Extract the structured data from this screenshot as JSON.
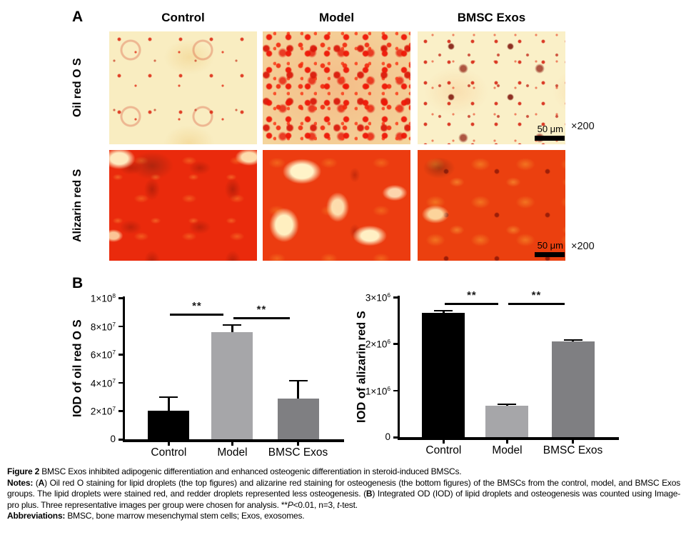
{
  "panel_a": {
    "label": "A",
    "column_headers": [
      "Control",
      "Model",
      "BMSC Exos"
    ],
    "row_labels": [
      "Oil red O S",
      "Alizarin red S"
    ],
    "scale_bar_text": "50 μm",
    "magnification": "×200"
  },
  "panel_b": {
    "label": "B"
  },
  "chart_data": [
    {
      "type": "bar",
      "title": "",
      "ylabel": "IOD of oil red O S",
      "xlabel": "",
      "categories": [
        "Control",
        "Model",
        "BMSC Exos"
      ],
      "values": [
        20000000,
        76000000,
        29000000
      ],
      "errors": [
        10500000,
        5500000,
        13000000
      ],
      "bar_colors": [
        "#000000",
        "#a6a6a9",
        "#7f7f82"
      ],
      "ylim": [
        0,
        100000000
      ],
      "grid": false,
      "legend": "none",
      "yticks": [
        {
          "value": 0,
          "label": "0"
        },
        {
          "value": 20000000,
          "label": "2×10^7"
        },
        {
          "value": 40000000,
          "label": "4×10^7"
        },
        {
          "value": 60000000,
          "label": "6×10^7"
        },
        {
          "value": 80000000,
          "label": "8×10^7"
        },
        {
          "value": 100000000,
          "label": "1×10^8"
        }
      ],
      "significance": [
        {
          "from": 0,
          "to": 1,
          "label": "**",
          "value": 89000000
        },
        {
          "from": 1,
          "to": 2,
          "label": "**",
          "value": 86500000
        }
      ]
    },
    {
      "type": "bar",
      "title": "",
      "ylabel": "IOD of alizarin red S",
      "xlabel": "",
      "categories": [
        "Control",
        "Model",
        "BMSC Exos"
      ],
      "values": [
        2670000,
        680000,
        2050000
      ],
      "errors": [
        60000,
        40000,
        50000
      ],
      "bar_colors": [
        "#000000",
        "#a6a6a9",
        "#7f7f82"
      ],
      "ylim": [
        0,
        3000000
      ],
      "grid": false,
      "legend": "none",
      "yticks": [
        {
          "value": 0,
          "label": "0"
        },
        {
          "value": 1000000,
          "label": "1×10^6"
        },
        {
          "value": 2000000,
          "label": "2×10^6"
        },
        {
          "value": 3000000,
          "label": "3×10^6"
        }
      ],
      "significance": [
        {
          "from": 0,
          "to": 1,
          "label": "**",
          "value": 2880000
        },
        {
          "from": 1,
          "to": 2,
          "label": "**",
          "value": 2880000
        }
      ]
    }
  ],
  "caption": {
    "blocks": [
      {
        "name": "figure-title",
        "justify": false,
        "segments": [
          {
            "text": "Figure 2",
            "bold": true
          },
          {
            "text": " BMSC Exos inhibited adipogenic differentiation and enhanced osteogenic differentiation in steroid-induced BMSCs."
          }
        ]
      },
      {
        "name": "notes",
        "justify": true,
        "segments": [
          {
            "text": "Notes:",
            "bold": true
          },
          {
            "text": " ("
          },
          {
            "text": "A",
            "bold": true
          },
          {
            "text": ") Oil red O staining for lipid droplets (the top figures) and alizarine red staining for osteogenesis (the bottom figures) of the BMSCs from the control, model, and BMSC Exos groups. The lipid droplets were stained red, and redder droplets represented less osteogenesis. ("
          },
          {
            "text": "B",
            "bold": true
          },
          {
            "text": ") Integrated OD (IOD) of lipid droplets and osteogenesis was counted using Image-pro plus. Three representative images per group were chosen for analysis. **"
          },
          {
            "text": "P",
            "italic": true
          },
          {
            "text": "<0.01, n=3, "
          },
          {
            "text": "t",
            "italic": true
          },
          {
            "text": "-test."
          }
        ]
      },
      {
        "name": "abbreviations",
        "justify": false,
        "segments": [
          {
            "text": "Abbreviations:",
            "bold": true
          },
          {
            "text": " BMSC, bone marrow mesenchymal stem cells; Exos, exosomes."
          }
        ]
      }
    ]
  },
  "colors": {
    "oil_red_background": "#f8ecba",
    "oil_red_stain": "#e01505",
    "alizarin_base": "#e8320c",
    "alizarin_highlight": "#fff4cc",
    "alizarin_orange": "#f5821e",
    "bar_black": "#000000",
    "bar_light_gray": "#a6a6a9",
    "bar_dark_gray": "#7f7f82"
  }
}
